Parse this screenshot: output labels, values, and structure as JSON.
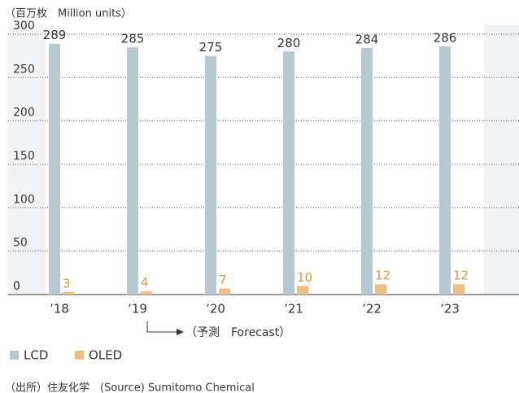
{
  "chart_data": {
    "type": "bar",
    "unit_label": "（百万枚　Million units）",
    "categories": [
      "’18",
      "’19",
      "’20",
      "’21",
      "’22",
      "’23"
    ],
    "series": [
      {
        "name": "LCD",
        "color": "#b7c8d0",
        "label_color": "#333333",
        "values": [
          289,
          285,
          275,
          280,
          284,
          286
        ]
      },
      {
        "name": "OLED",
        "color": "#ecbf86",
        "label_color": "#e0953f",
        "values": [
          3,
          4,
          7,
          10,
          12,
          12
        ]
      }
    ],
    "ylim": [
      0,
      300
    ],
    "yticks": [
      0,
      50,
      100,
      150,
      200,
      250,
      300
    ],
    "grid": true,
    "annotation": "（予測　Forecast）",
    "source": "（出所）住友化学　(Source) Sumitomo Chemical"
  }
}
